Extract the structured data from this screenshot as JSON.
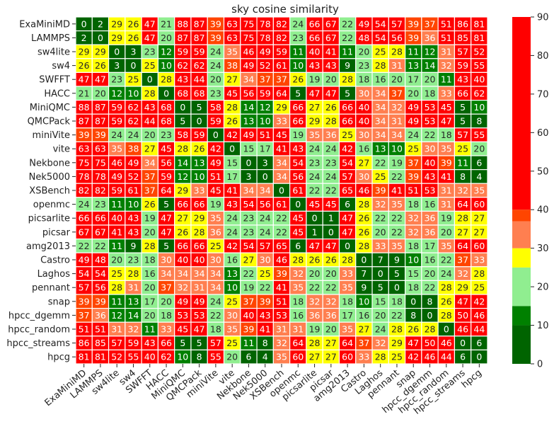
{
  "chart_data": {
    "type": "heatmap",
    "title": "sky cosine similarity",
    "xlabel": "",
    "ylabel": "",
    "rows": [
      "ExaMiniMD",
      "LAMMPS",
      "sw4lite",
      "sw4",
      "SWFFT",
      "HACC",
      "MiniQMC",
      "QMCPack",
      "miniVite",
      "vite",
      "Nekbone",
      "Nek5000",
      "XSBench",
      "openmc",
      "picsarlite",
      "picsar",
      "amg2013",
      "Castro",
      "Laghos",
      "pennant",
      "snap",
      "hpcc_dgemm",
      "hpcc_random",
      "hpcc_streams",
      "hpcg"
    ],
    "columns": [
      "ExaMiniMD",
      "LAMMPS",
      "sw4lite",
      "sw4",
      "SWFFT",
      "HACC",
      "MiniQMC",
      "QMCPack",
      "miniVite",
      "vite",
      "Nekbone",
      "Nek5000",
      "XSBench",
      "openmc",
      "picsarlite",
      "picsar",
      "amg2013",
      "Castro",
      "Laghos",
      "pennant",
      "snap",
      "hpcc_dgemm",
      "hpcc_random",
      "hpcc_streams",
      "hpcg"
    ],
    "values": [
      [
        0,
        2,
        29,
        26,
        47,
        21,
        88,
        87,
        39,
        63,
        75,
        78,
        82,
        24,
        66,
        67,
        22,
        49,
        54,
        57,
        39,
        37,
        51,
        86,
        81
      ],
      [
        2,
        0,
        29,
        26,
        47,
        20,
        87,
        87,
        39,
        63,
        75,
        78,
        82,
        23,
        66,
        67,
        22,
        48,
        54,
        56,
        39,
        36,
        51,
        85,
        81
      ],
      [
        29,
        29,
        0,
        3,
        23,
        12,
        59,
        59,
        24,
        35,
        46,
        49,
        59,
        11,
        40,
        41,
        11,
        20,
        25,
        28,
        11,
        12,
        31,
        57,
        52
      ],
      [
        26,
        26,
        3,
        0,
        25,
        10,
        62,
        62,
        24,
        38,
        49,
        52,
        61,
        10,
        43,
        43,
        9,
        23,
        28,
        31,
        13,
        14,
        32,
        59,
        55
      ],
      [
        47,
        47,
        23,
        25,
        0,
        28,
        43,
        44,
        20,
        27,
        34,
        37,
        37,
        26,
        19,
        20,
        28,
        18,
        16,
        20,
        17,
        20,
        11,
        43,
        40
      ],
      [
        21,
        20,
        12,
        10,
        28,
        0,
        68,
        68,
        23,
        45,
        56,
        59,
        64,
        5,
        47,
        47,
        5,
        30,
        34,
        37,
        20,
        18,
        33,
        66,
        62
      ],
      [
        88,
        87,
        59,
        62,
        43,
        68,
        0,
        5,
        58,
        28,
        14,
        12,
        29,
        66,
        27,
        26,
        66,
        40,
        34,
        32,
        49,
        53,
        45,
        5,
        10
      ],
      [
        87,
        87,
        59,
        62,
        44,
        68,
        5,
        0,
        59,
        26,
        13,
        10,
        33,
        66,
        29,
        28,
        66,
        40,
        34,
        31,
        49,
        53,
        47,
        5,
        8
      ],
      [
        39,
        39,
        24,
        24,
        20,
        23,
        58,
        59,
        0,
        42,
        49,
        51,
        45,
        19,
        35,
        36,
        25,
        30,
        34,
        34,
        24,
        22,
        18,
        57,
        55
      ],
      [
        63,
        63,
        35,
        38,
        27,
        45,
        28,
        26,
        42,
        0,
        15,
        17,
        41,
        43,
        24,
        24,
        42,
        16,
        13,
        10,
        25,
        30,
        35,
        25,
        20
      ],
      [
        75,
        75,
        46,
        49,
        34,
        56,
        14,
        13,
        49,
        15,
        0,
        3,
        34,
        54,
        23,
        23,
        54,
        27,
        22,
        19,
        37,
        40,
        39,
        11,
        6
      ],
      [
        78,
        78,
        49,
        52,
        37,
        59,
        12,
        10,
        51,
        17,
        3,
        0,
        34,
        56,
        24,
        24,
        57,
        30,
        25,
        22,
        39,
        43,
        41,
        8,
        4
      ],
      [
        82,
        82,
        59,
        61,
        37,
        64,
        29,
        33,
        45,
        41,
        34,
        34,
        0,
        61,
        22,
        22,
        65,
        46,
        39,
        41,
        51,
        53,
        31,
        32,
        35
      ],
      [
        24,
        23,
        11,
        10,
        26,
        5,
        66,
        66,
        19,
        43,
        54,
        56,
        61,
        0,
        45,
        45,
        6,
        28,
        32,
        35,
        18,
        16,
        31,
        64,
        60
      ],
      [
        66,
        66,
        40,
        43,
        19,
        47,
        27,
        29,
        35,
        24,
        23,
        24,
        22,
        45,
        0,
        1,
        47,
        26,
        22,
        22,
        32,
        36,
        19,
        28,
        27
      ],
      [
        67,
        67,
        41,
        43,
        20,
        47,
        26,
        28,
        36,
        24,
        23,
        24,
        22,
        45,
        1,
        0,
        47,
        26,
        20,
        22,
        32,
        36,
        20,
        27,
        27
      ],
      [
        22,
        22,
        11,
        9,
        28,
        5,
        66,
        66,
        25,
        42,
        54,
        57,
        65,
        6,
        47,
        47,
        0,
        28,
        33,
        35,
        18,
        17,
        35,
        64,
        60
      ],
      [
        49,
        48,
        20,
        23,
        18,
        30,
        40,
        40,
        30,
        16,
        27,
        30,
        46,
        28,
        26,
        26,
        28,
        0,
        7,
        9,
        10,
        16,
        22,
        37,
        33
      ],
      [
        54,
        54,
        25,
        28,
        16,
        34,
        34,
        34,
        34,
        13,
        22,
        25,
        39,
        32,
        20,
        20,
        33,
        7,
        0,
        5,
        15,
        20,
        24,
        32,
        28
      ],
      [
        57,
        56,
        28,
        31,
        20,
        37,
        32,
        31,
        34,
        10,
        19,
        22,
        41,
        35,
        22,
        22,
        35,
        9,
        5,
        0,
        18,
        22,
        28,
        29,
        25
      ],
      [
        39,
        39,
        11,
        13,
        17,
        20,
        49,
        49,
        24,
        25,
        37,
        39,
        51,
        18,
        32,
        32,
        18,
        10,
        15,
        18,
        0,
        8,
        26,
        47,
        42
      ],
      [
        37,
        36,
        12,
        14,
        20,
        18,
        53,
        53,
        22,
        30,
        40,
        43,
        53,
        16,
        36,
        36,
        17,
        16,
        20,
        22,
        8,
        0,
        28,
        50,
        46
      ],
      [
        51,
        51,
        31,
        32,
        11,
        33,
        45,
        47,
        18,
        35,
        39,
        41,
        31,
        31,
        19,
        20,
        35,
        27,
        24,
        28,
        26,
        28,
        0,
        46,
        44
      ],
      [
        86,
        85,
        57,
        59,
        43,
        66,
        5,
        5,
        57,
        25,
        11,
        8,
        32,
        64,
        28,
        27,
        64,
        37,
        32,
        29,
        47,
        50,
        46,
        0,
        6
      ],
      [
        81,
        81,
        52,
        55,
        40,
        62,
        10,
        8,
        55,
        20,
        6,
        4,
        35,
        60,
        27,
        27,
        60,
        33,
        28,
        25,
        42,
        46,
        44,
        6,
        0
      ]
    ],
    "vmin": 0,
    "vmax": 90,
    "colorbar": {
      "ticks": [
        0,
        10,
        20,
        30,
        40,
        50,
        60,
        70,
        80,
        90
      ],
      "bands": [
        {
          "from": 0,
          "to": 10,
          "color": "#006400"
        },
        {
          "from": 10,
          "to": 15,
          "color": "#008000"
        },
        {
          "from": 15,
          "to": 25,
          "color": "#90ee90"
        },
        {
          "from": 25,
          "to": 30,
          "color": "#ffff00"
        },
        {
          "from": 30,
          "to": 37,
          "color": "#ff7f50"
        },
        {
          "from": 37,
          "to": 40,
          "color": "#ff4500"
        },
        {
          "from": 40,
          "to": 90,
          "color": "#ff0000"
        }
      ]
    },
    "grid": true,
    "annotated": true
  }
}
